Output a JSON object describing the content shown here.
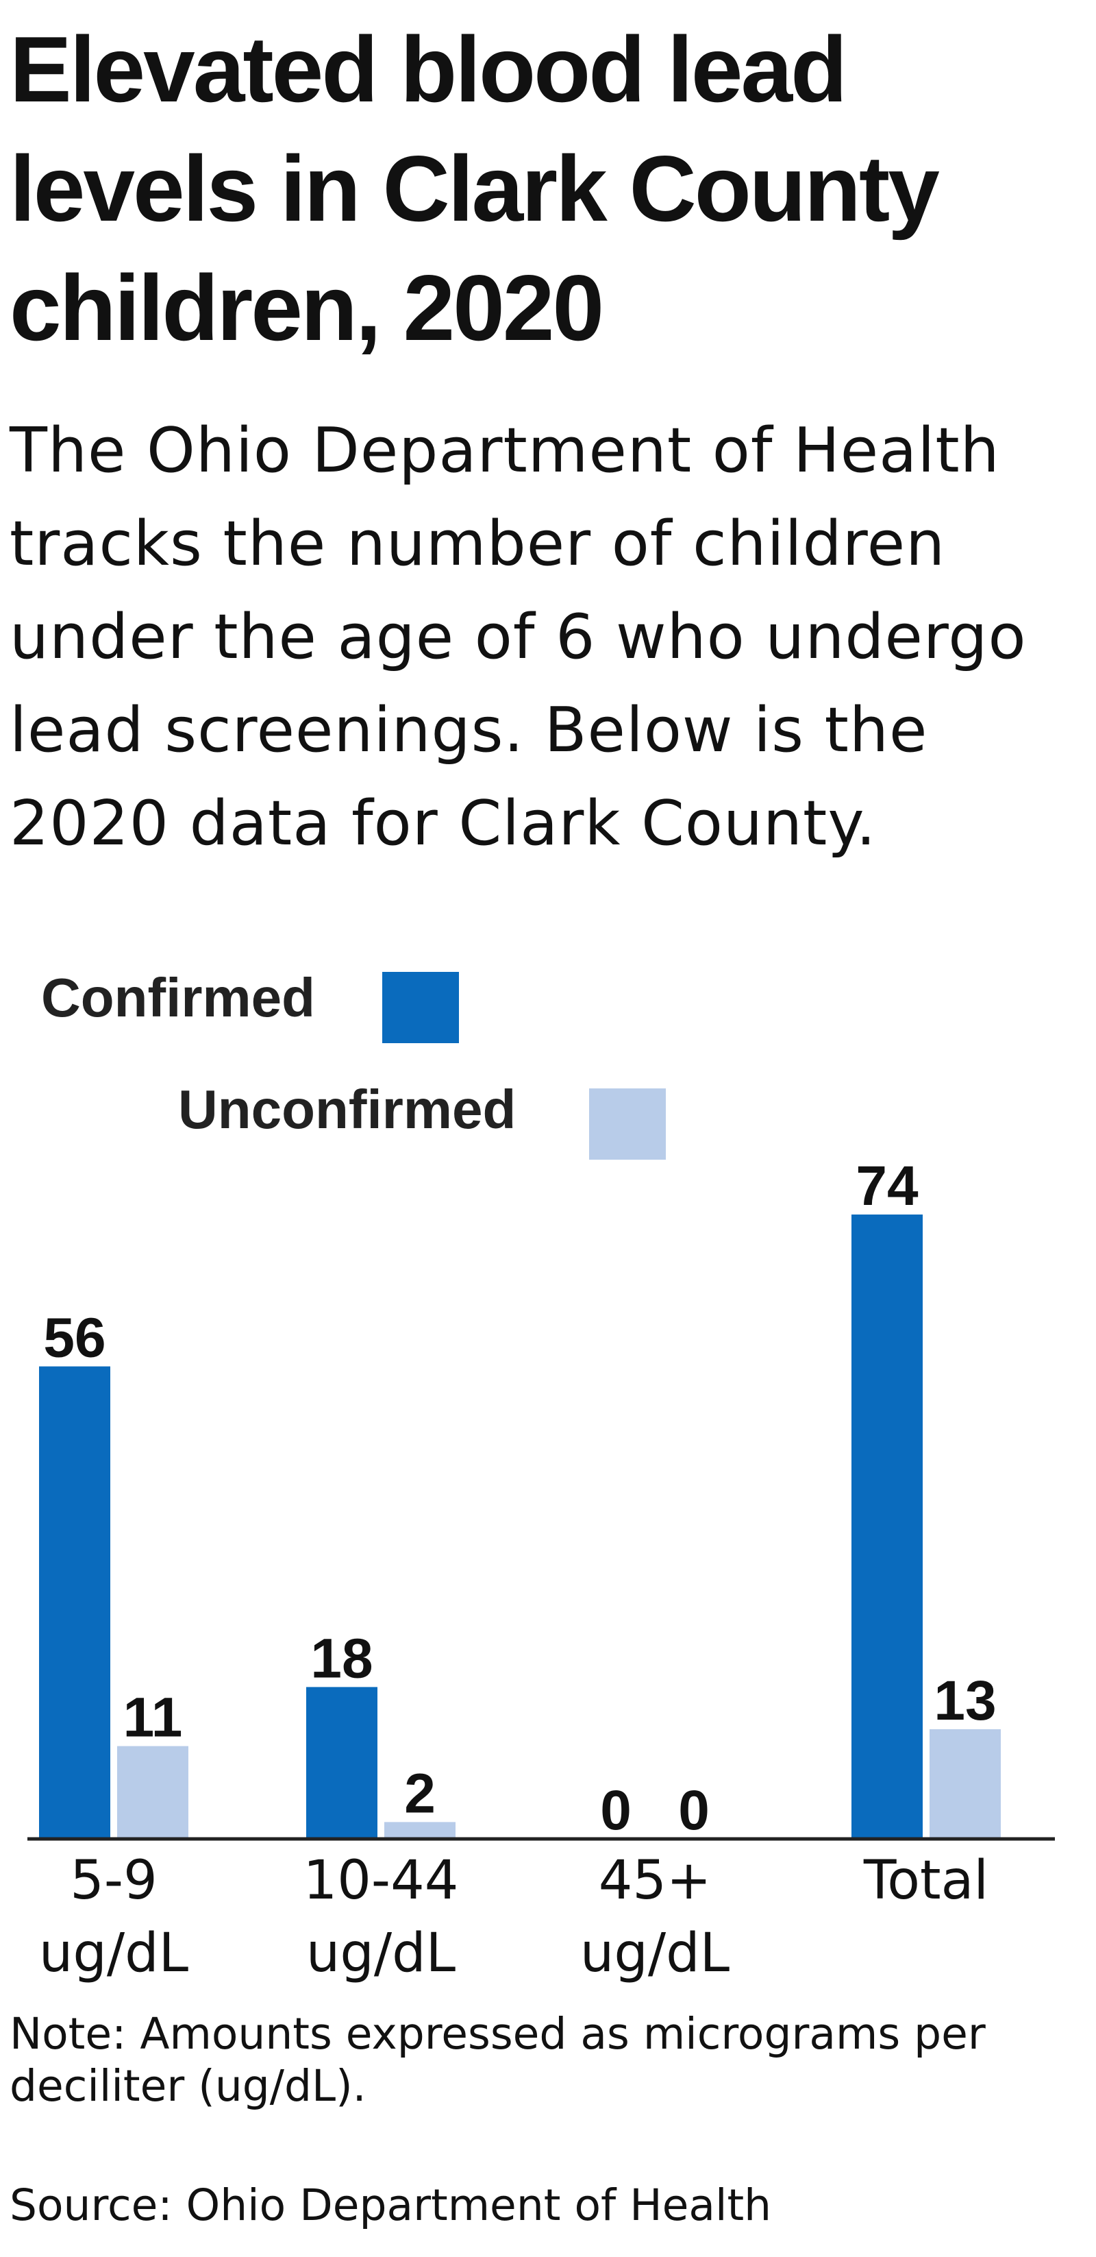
{
  "title": "Elevated blood lead levels in Clark County children, 2020",
  "subtitle": "The Ohio Department of Health tracks the number of children under the age of 6 who undergo lead screenings. Below is the 2020 data for Clark County.",
  "note": "Note: Amounts expressed as micrograms per deciliter (ug/dL).",
  "source": "Source: Ohio Department of Health",
  "colors": {
    "confirmed": "#0a6bbd",
    "unconfirmed": "#b8cce9",
    "axis": "#222222",
    "text": "#111111"
  },
  "chart_data": {
    "type": "bar",
    "categories": [
      [
        "5-9",
        "ug/dL"
      ],
      [
        "10-44",
        "ug/dL"
      ],
      [
        "45+",
        "ug/dL"
      ],
      [
        "Total"
      ]
    ],
    "series": [
      {
        "name": "Confirmed",
        "values": [
          56,
          18,
          0,
          74
        ]
      },
      {
        "name": "Unconfirmed",
        "values": [
          11,
          2,
          0,
          13
        ]
      }
    ],
    "ylim": [
      0,
      74
    ],
    "grid": false,
    "legend_position": "top-left",
    "data_labels": true
  }
}
